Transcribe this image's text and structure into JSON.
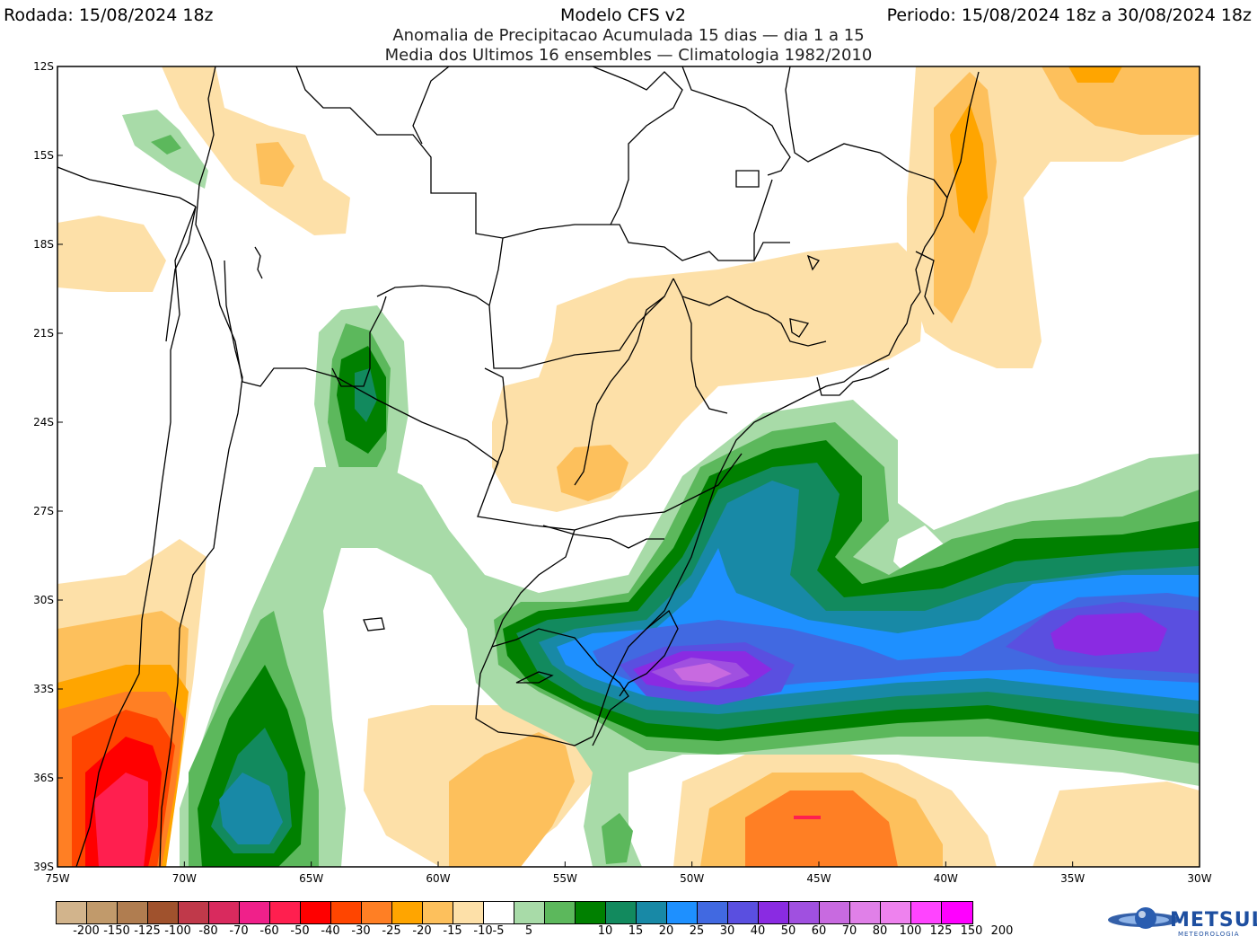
{
  "header": {
    "run": "Rodada: 15/08/2024 18z",
    "model": "Modelo CFS v2",
    "period": "Periodo: 15/08/2024 18z a 30/08/2024 18z",
    "subtitle1": "Anomalia de Precipitacao Acumulada 15 dias — dia 1 a 15",
    "subtitle2": "Media dos Ultimos 16 ensembles — Climatologia 1982/2010"
  },
  "axes": {
    "lat_labels": [
      "12S",
      "15S",
      "18S",
      "21S",
      "24S",
      "27S",
      "30S",
      "33S",
      "36S",
      "39S"
    ],
    "lon_labels": [
      "75W",
      "70W",
      "65W",
      "60W",
      "55W",
      "50W",
      "45W",
      "40W",
      "35W",
      "30W"
    ]
  },
  "legend": {
    "labels": [
      "-200",
      "-150",
      "-125",
      "-100",
      "-80",
      "-70",
      "-60",
      "-50",
      "-40",
      "-30",
      "-25",
      "-20",
      "-15",
      "-10",
      "-5",
      "5",
      "10",
      "15",
      "20",
      "25",
      "30",
      "40",
      "50",
      "60",
      "70",
      "80",
      "100",
      "125",
      "150",
      "200"
    ],
    "colors": [
      "#d2b48c",
      "#c19a6b",
      "#b07d50",
      "#a0522d",
      "#c0394a",
      "#d92a5e",
      "#f0208a",
      "#ff1f4f",
      "#ff0000",
      "#ff4500",
      "#ff7f24",
      "#ffa500",
      "#fdc05c",
      "#fde0a8",
      "#ffffff",
      "#a8dba8",
      "#5cb85c",
      "#008000",
      "#128a5e",
      "#1889a6",
      "#1e90ff",
      "#4169e1",
      "#5a4fe0",
      "#8a2be2",
      "#a050e0",
      "#c86ae0",
      "#e080e8",
      "#ee82ee",
      "#ff44ff",
      "#ff00ff"
    ]
  },
  "logo": {
    "name": "METSUL",
    "sub": "METEOROLOGIA"
  }
}
